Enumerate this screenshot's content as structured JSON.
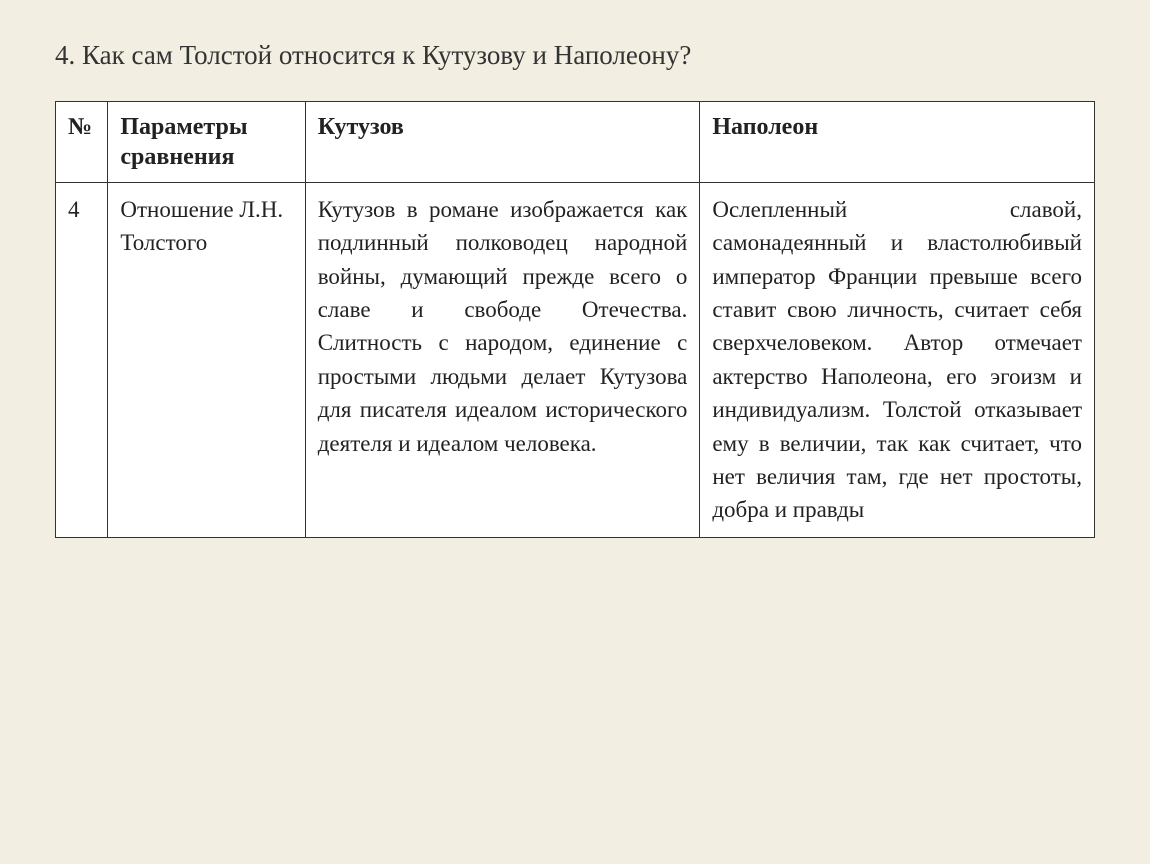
{
  "heading": "4. Как сам Толстой относится к Кутузову и Наполеону?",
  "table": {
    "headers": {
      "num": "№",
      "param": "Параметры сравнения",
      "kutuzov": "Кутузов",
      "napoleon": "Наполеон"
    },
    "row": {
      "num": "4",
      "param": "Отношение Л.Н. Толстого",
      "kutuzov": "Кутузов в романе изображается как подлинный полководец народной войны, думающий прежде всего о славе и свободе Отечества. Слитность с народом, единение с простыми людьми делает Кутузова для писателя идеалом исторического деятеля и идеалом человека.",
      "napoleon": "Ослепленный славой, самонадеянный и властолюбивый император Франции превыше всего ставит свою личность, считает себя сверхчеловеком. Автор отмечает актерство Наполеона, его эгоизм и индивидуализм. Толстой отказывает ему в величии, так как считает, что нет величия там, где нет простоты, добра и правды"
    }
  },
  "colors": {
    "background": "#f2eee2",
    "table_bg": "#ffffff",
    "border": "#333333",
    "text": "#222222"
  },
  "typography": {
    "heading_fontsize": 27,
    "header_fontsize": 24,
    "cell_fontsize": 23,
    "font_family": "Times New Roman"
  },
  "layout": {
    "col_widths": {
      "num": 40,
      "param": 185,
      "kutuzov": 370,
      "napoleon": 370
    }
  }
}
